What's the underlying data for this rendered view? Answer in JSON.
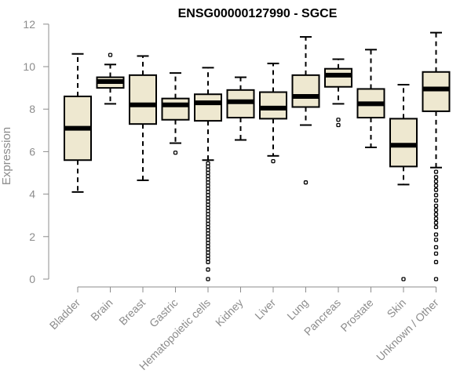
{
  "chart_data": {
    "type": "boxplot",
    "title": "ENSG00000127990 - SGCE",
    "xlabel": "",
    "ylabel": "Expression",
    "ylim": [
      0,
      12
    ],
    "yticks": [
      0,
      2,
      4,
      6,
      8,
      10,
      12
    ],
    "grid": false,
    "legend": "none",
    "box_fill": "#eee8d0",
    "box_stroke": "#000000",
    "categories": [
      "Bladder",
      "Brain",
      "Breast",
      "Gastric",
      "Hematopoietic cells",
      "Kidney",
      "Liver",
      "Lung",
      "Pancreas",
      "Prostate",
      "Skin",
      "Unknown / Other"
    ],
    "boxes": [
      {
        "name": "Bladder",
        "whisker_low": 4.1,
        "q1": 5.6,
        "median": 7.1,
        "q3": 8.6,
        "whisker_high": 10.6,
        "outliers": []
      },
      {
        "name": "Brain",
        "whisker_low": 8.25,
        "q1": 9.0,
        "median": 9.3,
        "q3": 9.5,
        "whisker_high": 10.1,
        "outliers": [
          10.55
        ]
      },
      {
        "name": "Breast",
        "whisker_low": 4.65,
        "q1": 7.3,
        "median": 8.2,
        "q3": 9.6,
        "whisker_high": 10.5,
        "outliers": []
      },
      {
        "name": "Gastric",
        "whisker_low": 6.4,
        "q1": 7.5,
        "median": 8.2,
        "q3": 8.5,
        "whisker_high": 9.7,
        "outliers": [
          5.95
        ]
      },
      {
        "name": "Hematopoietic cells",
        "whisker_low": 5.6,
        "q1": 7.45,
        "median": 8.3,
        "q3": 8.7,
        "whisker_high": 9.95,
        "outliers": [
          5.45,
          5.3,
          5.15,
          5.0,
          4.85,
          4.7,
          4.55,
          4.4,
          4.25,
          4.1,
          3.95,
          3.8,
          3.65,
          3.5,
          3.35,
          3.2,
          3.05,
          2.9,
          2.75,
          2.6,
          2.45,
          2.3,
          2.15,
          2.0,
          1.85,
          1.7,
          1.55,
          1.4,
          1.25,
          1.1,
          0.95,
          0.8,
          0.45,
          0.0
        ]
      },
      {
        "name": "Kidney",
        "whisker_low": 6.55,
        "q1": 7.6,
        "median": 8.35,
        "q3": 8.9,
        "whisker_high": 9.5,
        "outliers": []
      },
      {
        "name": "Liver",
        "whisker_low": 5.8,
        "q1": 7.55,
        "median": 8.05,
        "q3": 8.8,
        "whisker_high": 10.15,
        "outliers": [
          5.55
        ]
      },
      {
        "name": "Lung",
        "whisker_low": 7.25,
        "q1": 8.1,
        "median": 8.6,
        "q3": 9.6,
        "whisker_high": 11.4,
        "outliers": [
          4.55
        ]
      },
      {
        "name": "Pancreas",
        "whisker_low": 8.25,
        "q1": 9.05,
        "median": 9.6,
        "q3": 9.9,
        "whisker_high": 10.35,
        "outliers": [
          7.5,
          7.25
        ]
      },
      {
        "name": "Prostate",
        "whisker_low": 6.2,
        "q1": 7.6,
        "median": 8.25,
        "q3": 8.95,
        "whisker_high": 10.8,
        "outliers": []
      },
      {
        "name": "Skin",
        "whisker_low": 4.45,
        "q1": 5.3,
        "median": 6.3,
        "q3": 7.55,
        "whisker_high": 9.15,
        "outliers": [
          0.0
        ]
      },
      {
        "name": "Unknown / Other",
        "whisker_low": 5.25,
        "q1": 7.9,
        "median": 8.95,
        "q3": 9.75,
        "whisker_high": 11.6,
        "outliers": [
          5.05,
          4.8,
          4.6,
          4.4,
          4.2,
          3.95,
          3.7,
          3.45,
          3.25,
          3.05,
          2.85,
          2.65,
          2.45,
          2.1,
          1.85,
          1.5,
          1.2,
          0.8,
          0.0
        ]
      }
    ]
  }
}
